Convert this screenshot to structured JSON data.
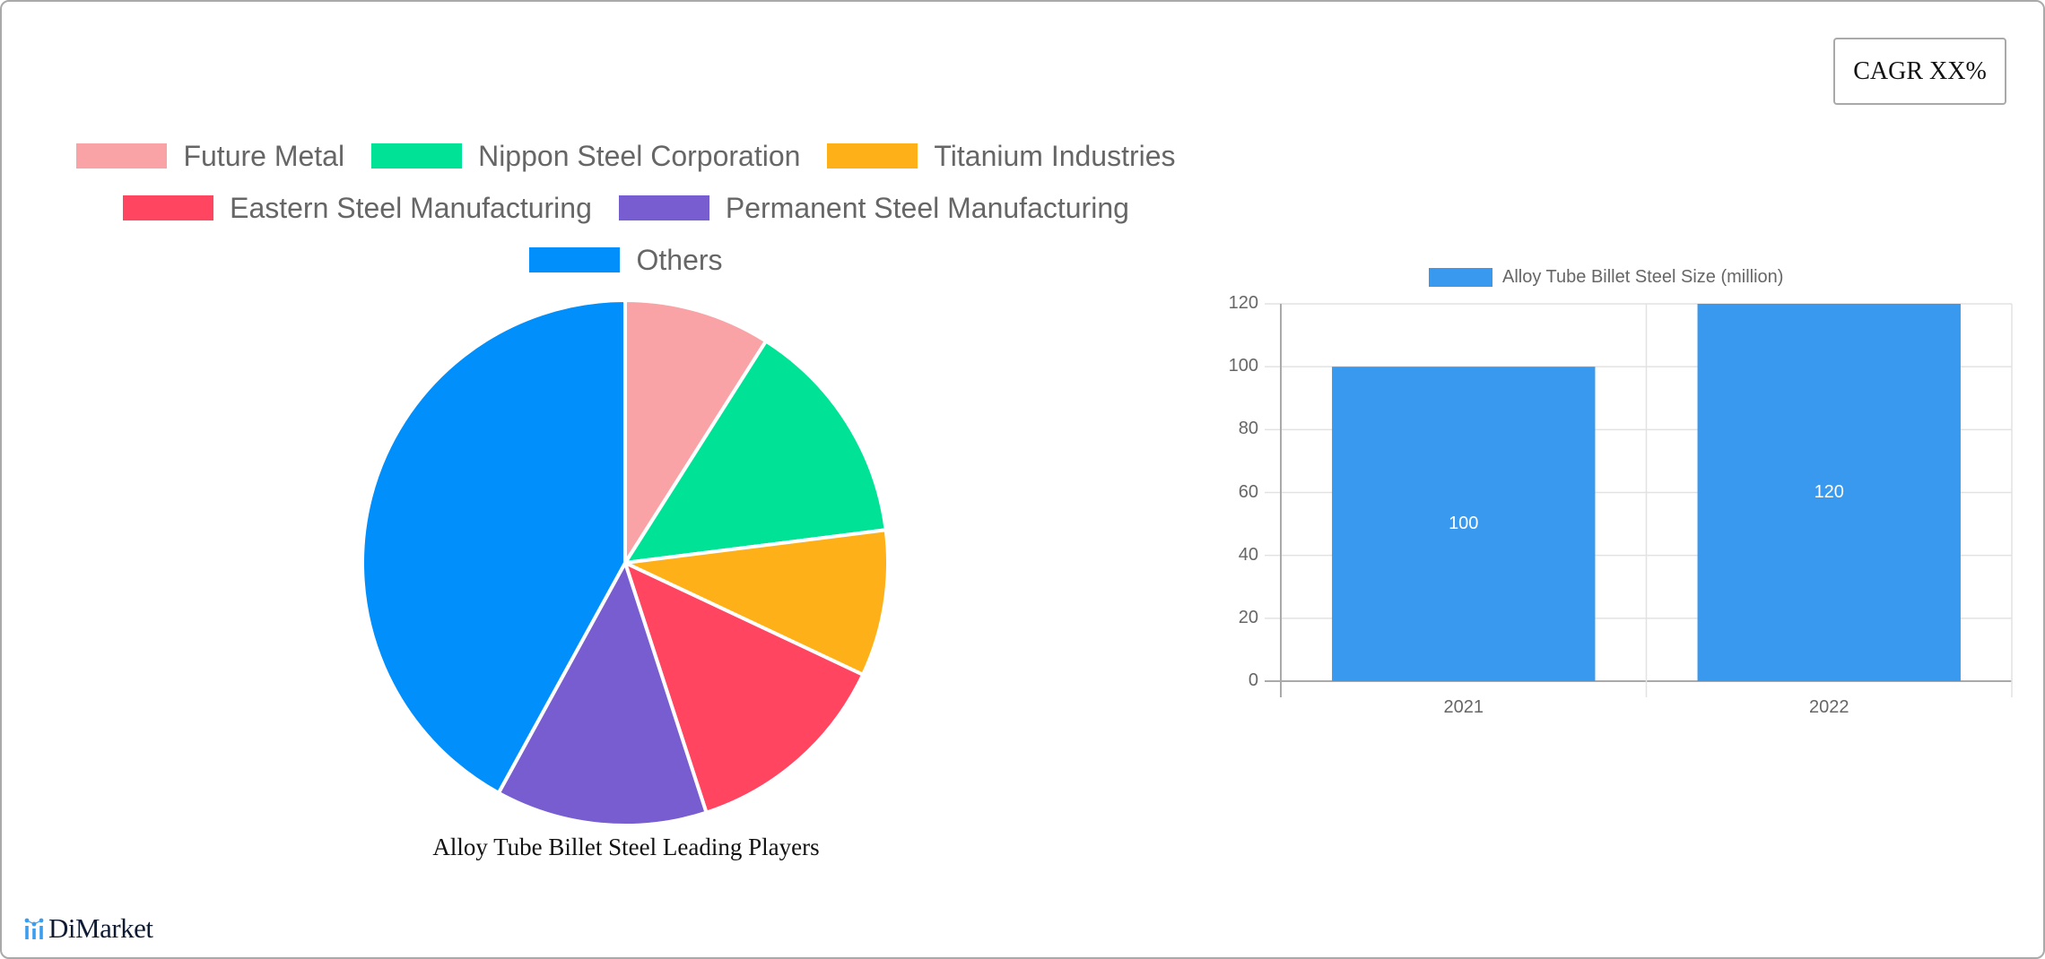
{
  "cagr_badge": {
    "label": "CAGR XX%"
  },
  "pie_legend": {
    "rows": [
      [
        {
          "label": "Future Metal",
          "color": "#f9a3a6"
        },
        {
          "label": "Nippon Steel Corporation",
          "color": "#00e396"
        },
        {
          "label": "Titanium Industries",
          "color": "#feb019"
        }
      ],
      [
        {
          "label": "Eastern Steel Manufacturing",
          "color": "#ff4560"
        },
        {
          "label": "Permanent Steel Manufacturing",
          "color": "#775dd0"
        }
      ],
      [
        {
          "label": "Others",
          "color": "#008ffb"
        }
      ]
    ]
  },
  "bar_legend": {
    "label": "Alloy Tube Billet Steel Size (million)",
    "color": "#3899ef"
  },
  "footer": {
    "brand": "DiMarket"
  },
  "chart_data": [
    {
      "type": "pie",
      "title": "Alloy Tube Billet Steel Leading Players",
      "categories": [
        "Future Metal",
        "Nippon Steel Corporation",
        "Titanium Industries",
        "Eastern Steel Manufacturing",
        "Permanent Steel Manufacturing",
        "Others"
      ],
      "values": [
        9,
        14,
        9,
        13,
        13,
        42
      ],
      "colors": [
        "#f9a3a6",
        "#00e396",
        "#feb019",
        "#ff4560",
        "#775dd0",
        "#008ffb"
      ],
      "legend_position": "top"
    },
    {
      "type": "bar",
      "title": "",
      "categories": [
        "2021",
        "2022"
      ],
      "series": [
        {
          "name": "Alloy Tube Billet Steel Size (million)",
          "values": [
            100,
            120
          ]
        }
      ],
      "data_labels": [
        "100",
        "120"
      ],
      "yticks": [
        "0",
        "20",
        "40",
        "60",
        "80",
        "100",
        "120"
      ],
      "xlabel": "",
      "ylabel": "",
      "ylim": [
        0,
        120
      ],
      "grid": true,
      "legend_position": "top",
      "color": "#3899ef"
    }
  ]
}
